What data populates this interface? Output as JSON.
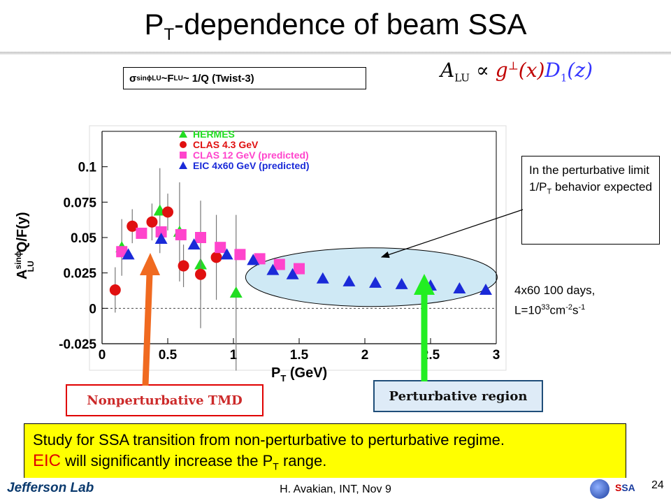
{
  "slide": {
    "title_main": "P",
    "title_sub": "T",
    "title_rest": "-dependence of beam SSA",
    "page_number": "24",
    "footer": "H. Avakian, INT,  Nov 9",
    "org_logo_text": "Jefferson Lab",
    "ssa_logo_text_a": "S",
    "ssa_logo_text_b": "SA"
  },
  "formula_box": {
    "sigma": "σ",
    "sup": "sinϕ",
    "sub": "LU",
    "mid": "~F",
    "sub2": "LU",
    "rest": "~ 1/Q (Twist-3)"
  },
  "proportionality": {
    "lhs": "A",
    "lhs_sub": "LU",
    "symbol": "∝",
    "g": "g",
    "g_sup": "⊥",
    "g_arg": "(x)",
    "d": "D",
    "d_sub": "1",
    "d_arg": "(z)"
  },
  "note": {
    "line1": "In the perturbative limit 1/P",
    "sub": "T",
    "line2": " behavior expected"
  },
  "luminosity": {
    "line1": "4x60 100 days,",
    "l_a": "L=10",
    "sup1": "33",
    "l_b": "cm",
    "sup2": "-2",
    "l_c": "s",
    "sup3": "-1"
  },
  "labels": {
    "nonperturbative": "Nonperturbative TMD",
    "perturbative": "Perturbative region"
  },
  "summary": {
    "line1": "Study for SSA transition from non-perturbative to perturbative regime.",
    "eic": "EIC",
    "line2a": " will significantly increase the P",
    "sub": "T",
    "line2b": " range."
  },
  "colors": {
    "hermes": "#22dd22",
    "clas43": "#e01010",
    "clas12": "#ff44cc",
    "eic": "#1a2ad8",
    "arrow_nonpert": "#f06a20",
    "arrow_pert": "#22ee22",
    "ellipse_fill": "#cfe9f5"
  },
  "chart_data": {
    "type": "scatter",
    "xlabel_main": "P",
    "xlabel_sub": "T",
    "xlabel_rest": " (GeV)",
    "ylabel_main": "A",
    "ylabel_sup": "sinϕ",
    "ylabel_sub": "LU",
    "ylabel_rest": "Q/F(y)",
    "xlim": [
      0,
      3
    ],
    "ylim": [
      -0.025,
      0.125
    ],
    "x_ticks": [
      "0",
      "0.5",
      "1",
      "1.5",
      "2",
      "2.5",
      "3"
    ],
    "x_tick_values": [
      0,
      0.5,
      1,
      1.5,
      2,
      2.5,
      3
    ],
    "y_ticks": [
      "-0.025",
      "0",
      "0.025",
      "0.05",
      "0.075",
      "0.1"
    ],
    "y_tick_values": [
      -0.025,
      0,
      0.025,
      0.05,
      0.075,
      0.1
    ],
    "zero_line": "dashed",
    "legend_position": "top-center",
    "series": [
      {
        "name": "HERMES",
        "marker": "triangle-up",
        "color": "#22dd22",
        "points": [
          {
            "x": 0.15,
            "y": 0.043,
            "err": 0.02
          },
          {
            "x": 0.44,
            "y": 0.069,
            "err": 0.03
          },
          {
            "x": 0.59,
            "y": 0.054,
            "err": 0.035
          },
          {
            "x": 0.75,
            "y": 0.031,
            "err": 0.045
          },
          {
            "x": 1.02,
            "y": 0.011,
            "err": 0.055
          }
        ]
      },
      {
        "name": "CLAS 4.3 GeV",
        "marker": "circle",
        "color": "#e01010",
        "points": [
          {
            "x": 0.1,
            "y": 0.013,
            "err": 0.016
          },
          {
            "x": 0.23,
            "y": 0.058,
            "err": 0.012
          },
          {
            "x": 0.38,
            "y": 0.061,
            "err": 0.013
          },
          {
            "x": 0.5,
            "y": 0.068,
            "err": 0.013
          },
          {
            "x": 0.62,
            "y": 0.03,
            "err": 0.015
          },
          {
            "x": 0.75,
            "y": 0.024,
            "err": 0.018
          },
          {
            "x": 0.87,
            "y": 0.036,
            "err": 0.03
          }
        ]
      },
      {
        "name": "CLAS 12 GeV (predicted)",
        "marker": "square",
        "color": "#ff44cc",
        "points": [
          {
            "x": 0.15,
            "y": 0.04
          },
          {
            "x": 0.3,
            "y": 0.053
          },
          {
            "x": 0.45,
            "y": 0.054
          },
          {
            "x": 0.6,
            "y": 0.052
          },
          {
            "x": 0.75,
            "y": 0.05
          },
          {
            "x": 0.9,
            "y": 0.043
          },
          {
            "x": 1.05,
            "y": 0.038
          },
          {
            "x": 1.2,
            "y": 0.035
          },
          {
            "x": 1.35,
            "y": 0.031
          },
          {
            "x": 1.5,
            "y": 0.028
          }
        ]
      },
      {
        "name": "EIC 4x60 GeV (predicted)",
        "marker": "triangle-up",
        "color": "#1a2ad8",
        "points": [
          {
            "x": 0.2,
            "y": 0.038
          },
          {
            "x": 0.45,
            "y": 0.049
          },
          {
            "x": 0.7,
            "y": 0.045
          },
          {
            "x": 0.95,
            "y": 0.038
          },
          {
            "x": 1.15,
            "y": 0.034
          },
          {
            "x": 1.3,
            "y": 0.027
          },
          {
            "x": 1.45,
            "y": 0.024
          },
          {
            "x": 1.68,
            "y": 0.021
          },
          {
            "x": 1.88,
            "y": 0.019
          },
          {
            "x": 2.08,
            "y": 0.018
          },
          {
            "x": 2.28,
            "y": 0.017
          },
          {
            "x": 2.5,
            "y": 0.016
          },
          {
            "x": 2.72,
            "y": 0.014
          },
          {
            "x": 2.92,
            "y": 0.013
          }
        ]
      }
    ]
  }
}
